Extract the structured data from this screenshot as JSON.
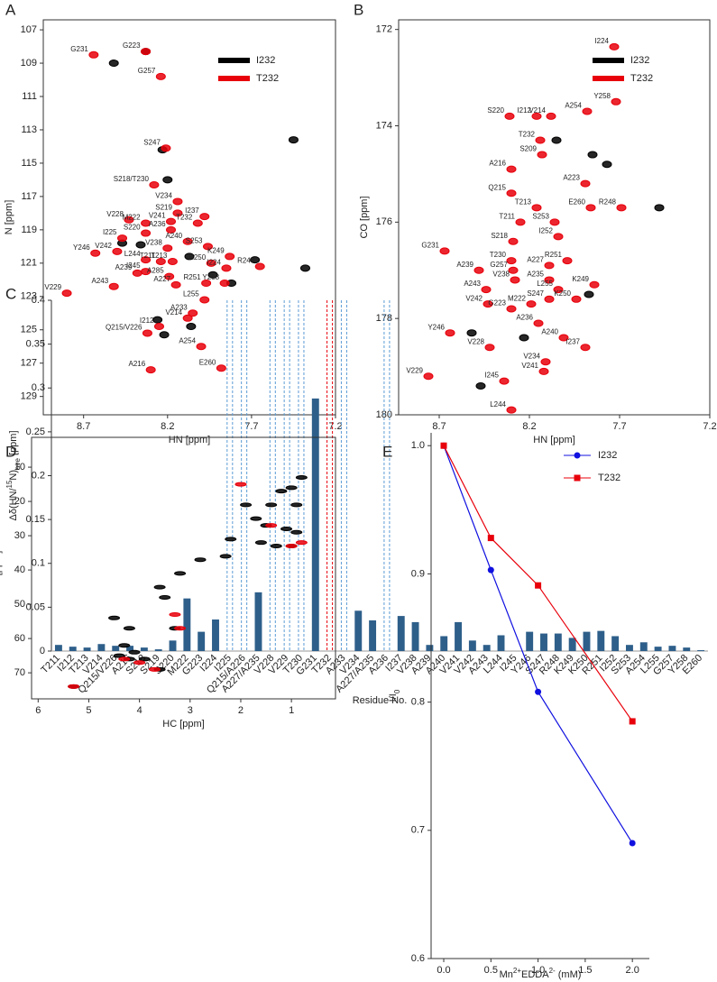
{
  "chart_data": [
    {
      "type": "scatter",
      "panel": "A",
      "xlabel": "HN [ppm]",
      "ylabel": "N [ppm]",
      "xlim": [
        8.94,
        7.2
      ],
      "ylim": [
        130.1,
        106.4
      ],
      "xticks": [
        8.7,
        8.2,
        7.7,
        7.2
      ],
      "yticks": [
        107,
        109,
        111,
        113,
        115,
        117,
        119,
        121,
        123,
        125,
        127,
        129
      ],
      "legend": "upper right",
      "series": [
        {
          "name": "I232",
          "color": "#000000",
          "x": [
            8.52,
            8.33,
            8.23,
            7.45,
            7.38,
            8.47,
            8.36,
            7.93,
            7.82,
            8.06,
            8.26,
            8.22,
            8.2,
            8.07,
            7.68
          ],
          "y": [
            109.0,
            108.3,
            114.2,
            113.6,
            121.3,
            119.8,
            119.9,
            121.7,
            122.2,
            124.8,
            124.4,
            125.3,
            116.0,
            120.6,
            120.8
          ]
        },
        {
          "name": "T232",
          "color": "#e8000b",
          "labels": [
            "G231",
            "G223",
            "G257",
            "S247",
            "S218/T230",
            "V234",
            "V228",
            "M222",
            "V241",
            "S219",
            "I237",
            "S220",
            "A236",
            "A240",
            "T232",
            "I225",
            "V238",
            "S253",
            "Y246",
            "V242",
            "L244",
            "T211",
            "T213",
            "K249",
            "K250",
            "I224",
            "R248",
            "A239",
            "I245",
            "A285",
            "A227",
            "R251",
            "Y258",
            "A243",
            "V229",
            "L255",
            "A233",
            "V214",
            "I212",
            "Q215/V226",
            "A254",
            "E260",
            "A216"
          ],
          "x": [
            8.64,
            8.33,
            8.24,
            8.21,
            8.28,
            8.14,
            8.43,
            8.33,
            8.18,
            8.14,
            7.98,
            8.33,
            8.18,
            8.08,
            8.02,
            8.47,
            8.2,
            7.96,
            8.63,
            8.5,
            8.33,
            8.24,
            8.17,
            7.83,
            7.94,
            7.85,
            7.65,
            8.38,
            8.33,
            8.19,
            8.15,
            7.97,
            7.86,
            8.52,
            8.8,
            7.98,
            8.05,
            8.08,
            8.25,
            8.32,
            8.0,
            7.88,
            8.3
          ],
          "y": [
            108.5,
            108.3,
            109.8,
            114.1,
            116.3,
            117.3,
            118.4,
            118.6,
            118.5,
            118.0,
            118.2,
            119.2,
            119.0,
            119.7,
            118.6,
            119.5,
            120.1,
            120.0,
            120.4,
            120.3,
            120.8,
            120.9,
            120.9,
            120.6,
            121.0,
            121.3,
            121.2,
            121.6,
            121.5,
            121.8,
            122.3,
            122.2,
            122.2,
            122.4,
            122.8,
            123.2,
            124.0,
            124.3,
            124.8,
            125.2,
            126.0,
            127.3,
            127.4
          ]
        }
      ]
    },
    {
      "type": "scatter",
      "panel": "B",
      "xlabel": "HN [ppm]",
      "ylabel": "CO [ppm]",
      "xlim": [
        8.925,
        7.2
      ],
      "ylim": [
        180.0,
        171.8
      ],
      "xticks": [
        8.7,
        8.2,
        7.7,
        7.2
      ],
      "yticks": [
        172,
        174,
        176,
        178,
        180
      ],
      "legend": "upper right",
      "series": [
        {
          "name": "I232",
          "color": "#000000",
          "x": [
            7.48,
            7.85,
            7.77,
            8.52,
            8.47,
            8.05,
            8.23,
            7.87
          ],
          "y": [
            175.7,
            174.6,
            174.8,
            178.3,
            179.4,
            174.3,
            178.4,
            177.5
          ]
        },
        {
          "name": "T232",
          "color": "#e8000b",
          "labels": [
            "I224",
            "Y258",
            "S220",
            "I212",
            "V214",
            "A254",
            "T232",
            "S209",
            "A216",
            "A223",
            "Q215",
            "E260",
            "R248",
            "T213",
            "T211",
            "S253",
            "I252",
            "G231",
            "S218",
            "R251",
            "T230",
            "A239",
            "G257",
            "A227",
            "A235",
            "V238",
            "K249",
            "A243",
            "L255",
            "S247",
            "K250",
            "V242",
            "G223",
            "M222",
            "A236",
            "Y246",
            "A240",
            "V228",
            "I237",
            "V234",
            "V229",
            "V241",
            "I245",
            "L244"
          ],
          "x": [
            7.73,
            7.72,
            8.31,
            8.16,
            8.08,
            7.88,
            8.14,
            8.13,
            8.3,
            7.89,
            8.3,
            7.86,
            7.69,
            8.16,
            8.25,
            8.06,
            8.04,
            8.67,
            8.29,
            7.99,
            8.3,
            8.48,
            8.29,
            8.09,
            8.09,
            8.28,
            7.84,
            8.44,
            8.04,
            8.09,
            7.94,
            8.43,
            8.3,
            8.19,
            8.15,
            8.64,
            8.01,
            8.42,
            7.89,
            8.11,
            8.76,
            8.12,
            8.34,
            8.3
          ],
          "y": [
            172.36,
            173.5,
            173.8,
            173.8,
            173.8,
            173.7,
            174.3,
            174.6,
            174.9,
            175.2,
            175.4,
            175.7,
            175.7,
            175.7,
            176.0,
            176.0,
            176.3,
            176.6,
            176.4,
            176.8,
            176.8,
            177.0,
            177.0,
            176.9,
            177.2,
            177.2,
            177.3,
            177.4,
            177.4,
            177.6,
            177.6,
            177.7,
            177.8,
            177.7,
            178.1,
            178.3,
            178.4,
            178.6,
            178.6,
            178.9,
            179.2,
            179.1,
            179.3,
            179.9
          ]
        }
      ]
    },
    {
      "type": "bar",
      "panel": "C",
      "xlabel": "Residue No.",
      "ylabel": [
        "Δδ(HN/",
        "15",
        "N)",
        "ave",
        " [ppm]"
      ],
      "ylabel_format": [
        "normal",
        "sup",
        "normal",
        "sub",
        "normal"
      ],
      "ylim": [
        0,
        0.4
      ],
      "yticks": [
        0,
        0.05,
        0.1,
        0.15,
        0.2,
        0.25,
        0.3,
        0.35,
        0.4
      ],
      "color": "#2e5f8a",
      "categories": [
        "T211",
        "I212",
        "T213",
        "V214",
        "Q215/V226",
        "A216",
        "S218",
        "S219",
        "S220",
        "M222",
        "G223",
        "I224",
        "I225",
        "Q215/A226",
        "A227/A235",
        "V228",
        "V229",
        "T230",
        "G231",
        "T232",
        "A233",
        "V234",
        "A227/A235",
        "A236",
        "I237",
        "V238",
        "A239",
        "A240",
        "V241",
        "V242",
        "A243",
        "L244",
        "I245",
        "Y246",
        "S247",
        "R248",
        "K249",
        "K250",
        "R251",
        "I252",
        "S253",
        "A254",
        "L255",
        "G257",
        "Y258",
        "E260"
      ],
      "values": [
        0.007,
        0.005,
        0.004,
        0.008,
        0.006,
        0.006,
        0.004,
        0.002,
        0.012,
        0.06,
        0.022,
        0.036,
        null,
        null,
        0.067,
        null,
        null,
        null,
        0.288,
        null,
        null,
        0.046,
        0.035,
        null,
        0.04,
        0.033,
        0.007,
        0.017,
        0.033,
        0.012,
        0.007,
        0.018,
        0,
        0.022,
        0.02,
        0.02,
        0.015,
        0.022,
        0.023,
        0.017,
        0.007,
        0.01,
        0.005,
        0.006,
        0.004,
        0.001
      ],
      "marked_categories": [
        12,
        13,
        15,
        16,
        17,
        20,
        23
      ],
      "marked_color": "#5b9bd5",
      "mutation_category": 19,
      "mutation_color": "#e8000b"
    },
    {
      "type": "scatter",
      "panel": "D",
      "xlabel": "HC [ppm]",
      "ylabel": "C [ppm]",
      "xlim": [
        6.13,
        0.13
      ],
      "ylim": [
        77.6,
        1.3
      ],
      "xticks": [
        6,
        5,
        4,
        3,
        2,
        1
      ],
      "yticks": [
        10,
        20,
        30,
        40,
        50,
        60,
        70
      ],
      "series": [
        {
          "name": "I232",
          "color": "#000000",
          "x": [
            1.0,
            1.2,
            0.9,
            1.4,
            1.9,
            1.7,
            1.5,
            1.1,
            0.9,
            1.6,
            1.0,
            1.3,
            2.2,
            2.3,
            2.8,
            3.2,
            3.6,
            3.5,
            4.5,
            4.2,
            3.3,
            4.3,
            4.4,
            4.1,
            3.9,
            3.6,
            4.2,
            5.3,
            0.8
          ],
          "y": [
            16,
            17,
            21,
            21,
            21,
            25,
            27,
            28,
            29,
            32,
            33,
            33,
            31,
            36,
            37,
            41,
            45,
            48,
            54,
            57,
            57,
            62,
            65,
            64,
            66,
            69,
            66,
            74,
            13
          ]
        },
        {
          "name": "T232",
          "color": "#e8000b",
          "x": [
            2.0,
            1.4,
            1.0,
            0.8,
            3.2,
            4.3,
            4.0,
            3.7,
            5.3,
            3.3
          ],
          "y": [
            15,
            27,
            33,
            32,
            57,
            66,
            67,
            69,
            74,
            53
          ]
        }
      ]
    },
    {
      "type": "line",
      "panel": "E",
      "xlabel": [
        "Mn",
        "2+",
        "EDDA",
        "2-",
        " (mM)"
      ],
      "xlabel_format": [
        "normal",
        "sup",
        "normal",
        "sup",
        "normal"
      ],
      "ylabel": [
        "I/I",
        "0"
      ],
      "ylabel_format": [
        "normal",
        "sub"
      ],
      "xlim": [
        -0.134,
        2.18
      ],
      "ylim": [
        0.6,
        1.01
      ],
      "xticks": [
        {
          "value": 0,
          "label": "0.0"
        },
        0.5,
        {
          "value": 1,
          "label": "1.0"
        },
        1.5,
        {
          "value": 2,
          "label": "2.0"
        }
      ],
      "yticks": [
        0.6,
        0.7,
        0.8,
        0.9,
        {
          "value": 1,
          "label": "1.0"
        }
      ],
      "legend": "upper right",
      "x": [
        0,
        0.5,
        1,
        2
      ],
      "series": [
        {
          "name": "I232",
          "color": "#1010e0",
          "marker": "circle",
          "values": [
            1.0,
            0.903,
            0.808,
            0.69
          ]
        },
        {
          "name": "T232",
          "color": "#e8000b",
          "marker": "square",
          "values": [
            1.0,
            0.928,
            0.891,
            0.785
          ]
        }
      ]
    }
  ]
}
